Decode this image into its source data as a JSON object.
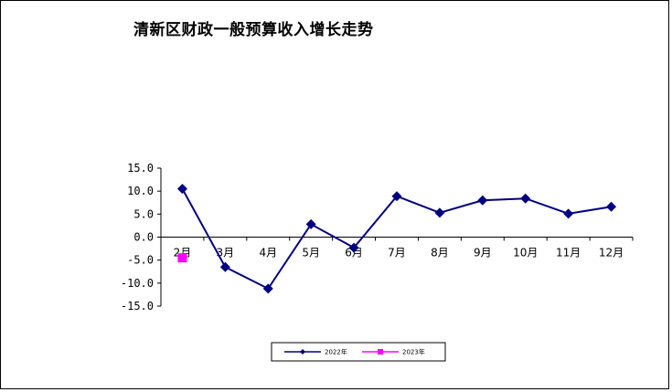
{
  "chart_data": {
    "type": "line",
    "title": "清新区财政一般预算收入增长走势",
    "categories": [
      "2月",
      "3月",
      "4月",
      "5月",
      "6月",
      "7月",
      "8月",
      "9月",
      "10月",
      "11月",
      "12月"
    ],
    "y_ticks": [
      "15.0",
      "10.0",
      "5.0",
      "0.0",
      "-5.0",
      "-10.0",
      "-15.0"
    ],
    "ylim": [
      -15,
      15
    ],
    "grid": false,
    "legend_position": "bottom",
    "series": [
      {
        "name": "2022年",
        "color": "#000080",
        "marker": "diamond",
        "values": [
          10.5,
          -6.5,
          -11.2,
          2.8,
          -2.3,
          8.9,
          5.3,
          8.0,
          8.4,
          5.1,
          6.6
        ]
      },
      {
        "name": "2023年",
        "color": "#ff00ff",
        "marker": "square",
        "values": [
          -4.5,
          null,
          null,
          null,
          null,
          null,
          null,
          null,
          null,
          null,
          null
        ]
      }
    ]
  }
}
